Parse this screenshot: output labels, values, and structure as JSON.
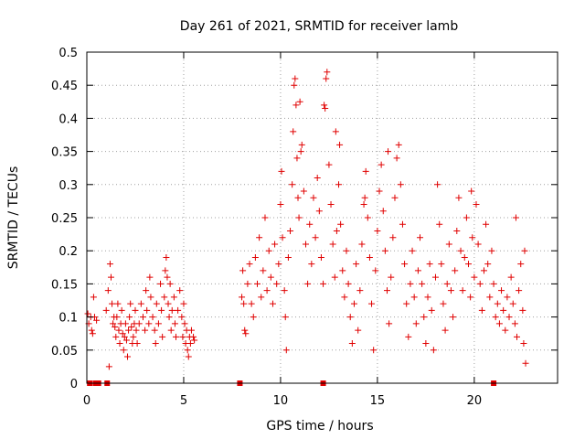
{
  "chart_data": {
    "type": "scatter",
    "title": "Day 261 of 2021, SRMTID for receiver lamb",
    "xlabel": "GPS time / hours",
    "ylabel": "SRMTID / TECUs",
    "xlim": [
      0,
      24.3
    ],
    "ylim": [
      0,
      0.5
    ],
    "x_ticks": [
      0,
      5,
      10,
      15,
      20
    ],
    "x_tick_labels": [
      "0",
      "5",
      "10",
      "15",
      "20"
    ],
    "y_ticks": [
      0,
      0.05,
      0.1,
      0.15,
      0.2,
      0.25,
      0.3,
      0.35,
      0.4,
      0.45,
      0.5
    ],
    "y_tick_labels": [
      "0",
      "0.05",
      "0.1",
      "0.15",
      "0.2",
      "0.25",
      "0.3",
      "0.35",
      "0.4",
      "0.45",
      "0.5"
    ],
    "grid": true,
    "marker": "+",
    "color": "#e00000",
    "zero_markers": {
      "x": [
        0.15,
        0.45,
        0.6,
        1.05,
        7.9,
        12.2,
        21.0
      ],
      "y": 0,
      "marker": "square"
    },
    "series": [
      {
        "name": "SRMTID",
        "points": [
          [
            0.05,
            0.105
          ],
          [
            0.1,
            0.09
          ],
          [
            0.2,
            0.1
          ],
          [
            0.25,
            0.08
          ],
          [
            0.3,
            0.075
          ],
          [
            0.35,
            0.13
          ],
          [
            0.4,
            0.1
          ],
          [
            0.5,
            0.095
          ],
          [
            1.0,
            0.11
          ],
          [
            1.1,
            0.14
          ],
          [
            1.2,
            0.18
          ],
          [
            1.25,
            0.16
          ],
          [
            1.3,
            0.12
          ],
          [
            1.35,
            0.09
          ],
          [
            1.4,
            0.1
          ],
          [
            1.45,
            0.085
          ],
          [
            1.5,
            0.07
          ],
          [
            1.55,
            0.1
          ],
          [
            1.6,
            0.12
          ],
          [
            1.65,
            0.08
          ],
          [
            1.7,
            0.06
          ],
          [
            1.75,
            0.09
          ],
          [
            1.8,
            0.11
          ],
          [
            1.85,
            0.075
          ],
          [
            1.9,
            0.05
          ],
          [
            1.95,
            0.07
          ],
          [
            2.0,
            0.09
          ],
          [
            2.05,
            0.065
          ],
          [
            2.1,
            0.04
          ],
          [
            2.15,
            0.08
          ],
          [
            2.2,
            0.1
          ],
          [
            2.25,
            0.12
          ],
          [
            2.3,
            0.085
          ],
          [
            2.35,
            0.06
          ],
          [
            2.4,
            0.07
          ],
          [
            2.45,
            0.09
          ],
          [
            2.5,
            0.11
          ],
          [
            2.55,
            0.08
          ],
          [
            2.6,
            0.06
          ],
          [
            2.7,
            0.09
          ],
          [
            2.8,
            0.12
          ],
          [
            2.9,
            0.1
          ],
          [
            3.0,
            0.08
          ],
          [
            3.05,
            0.14
          ],
          [
            3.1,
            0.11
          ],
          [
            3.2,
            0.09
          ],
          [
            3.25,
            0.16
          ],
          [
            3.3,
            0.13
          ],
          [
            3.4,
            0.1
          ],
          [
            3.5,
            0.08
          ],
          [
            3.55,
            0.06
          ],
          [
            3.6,
            0.12
          ],
          [
            3.7,
            0.09
          ],
          [
            3.8,
            0.15
          ],
          [
            3.85,
            0.11
          ],
          [
            3.9,
            0.07
          ],
          [
            4.0,
            0.13
          ],
          [
            4.05,
            0.17
          ],
          [
            4.1,
            0.19
          ],
          [
            4.15,
            0.16
          ],
          [
            4.2,
            0.12
          ],
          [
            4.25,
            0.1
          ],
          [
            4.3,
            0.15
          ],
          [
            4.35,
            0.08
          ],
          [
            4.4,
            0.11
          ],
          [
            4.5,
            0.13
          ],
          [
            4.55,
            0.09
          ],
          [
            4.6,
            0.07
          ],
          [
            4.7,
            0.11
          ],
          [
            4.8,
            0.14
          ],
          [
            4.9,
            0.1
          ],
          [
            4.95,
            0.07
          ],
          [
            5.0,
            0.12
          ],
          [
            5.05,
            0.09
          ],
          [
            5.1,
            0.06
          ],
          [
            5.15,
            0.08
          ],
          [
            5.2,
            0.05
          ],
          [
            5.25,
            0.04
          ],
          [
            5.3,
            0.07
          ],
          [
            5.35,
            0.06
          ],
          [
            5.4,
            0.08
          ],
          [
            5.5,
            0.07
          ],
          [
            5.55,
            0.065
          ],
          [
            1.15,
            0.025
          ],
          [
            8.0,
            0.13
          ],
          [
            8.05,
            0.17
          ],
          [
            8.1,
            0.12
          ],
          [
            8.15,
            0.08
          ],
          [
            8.2,
            0.075
          ],
          [
            8.3,
            0.15
          ],
          [
            8.4,
            0.18
          ],
          [
            8.5,
            0.12
          ],
          [
            8.6,
            0.1
          ],
          [
            8.7,
            0.19
          ],
          [
            8.8,
            0.15
          ],
          [
            8.9,
            0.22
          ],
          [
            9.0,
            0.13
          ],
          [
            9.1,
            0.17
          ],
          [
            9.2,
            0.25
          ],
          [
            9.3,
            0.14
          ],
          [
            9.4,
            0.2
          ],
          [
            9.5,
            0.16
          ],
          [
            9.6,
            0.12
          ],
          [
            9.7,
            0.21
          ],
          [
            9.8,
            0.15
          ],
          [
            9.9,
            0.18
          ],
          [
            10.0,
            0.27
          ],
          [
            10.05,
            0.32
          ],
          [
            10.1,
            0.22
          ],
          [
            10.2,
            0.14
          ],
          [
            10.25,
            0.1
          ],
          [
            10.3,
            0.05
          ],
          [
            10.4,
            0.19
          ],
          [
            10.5,
            0.23
          ],
          [
            10.6,
            0.3
          ],
          [
            10.65,
            0.38
          ],
          [
            10.7,
            0.45
          ],
          [
            10.75,
            0.46
          ],
          [
            10.8,
            0.42
          ],
          [
            10.85,
            0.34
          ],
          [
            10.9,
            0.28
          ],
          [
            10.95,
            0.25
          ],
          [
            11.0,
            0.425
          ],
          [
            11.05,
            0.35
          ],
          [
            11.1,
            0.36
          ],
          [
            11.2,
            0.29
          ],
          [
            11.3,
            0.21
          ],
          [
            11.4,
            0.15
          ],
          [
            11.5,
            0.24
          ],
          [
            11.6,
            0.18
          ],
          [
            11.7,
            0.28
          ],
          [
            11.8,
            0.22
          ],
          [
            11.9,
            0.31
          ],
          [
            12.0,
            0.26
          ],
          [
            12.1,
            0.19
          ],
          [
            12.2,
            0.15
          ],
          [
            12.25,
            0.42
          ],
          [
            12.3,
            0.415
          ],
          [
            12.35,
            0.46
          ],
          [
            12.4,
            0.47
          ],
          [
            12.5,
            0.33
          ],
          [
            12.6,
            0.27
          ],
          [
            12.7,
            0.21
          ],
          [
            12.8,
            0.16
          ],
          [
            12.9,
            0.23
          ],
          [
            13.0,
            0.3
          ],
          [
            13.1,
            0.24
          ],
          [
            13.2,
            0.17
          ],
          [
            13.3,
            0.13
          ],
          [
            13.4,
            0.2
          ],
          [
            13.5,
            0.15
          ],
          [
            13.6,
            0.1
          ],
          [
            13.7,
            0.06
          ],
          [
            13.8,
            0.12
          ],
          [
            13.9,
            0.18
          ],
          [
            14.0,
            0.08
          ],
          [
            14.1,
            0.14
          ],
          [
            14.2,
            0.21
          ],
          [
            14.3,
            0.27
          ],
          [
            14.4,
            0.32
          ],
          [
            14.5,
            0.25
          ],
          [
            14.6,
            0.19
          ],
          [
            14.7,
            0.12
          ],
          [
            14.8,
            0.05
          ],
          [
            14.9,
            0.17
          ],
          [
            15.0,
            0.23
          ],
          [
            15.1,
            0.29
          ],
          [
            15.2,
            0.33
          ],
          [
            15.3,
            0.26
          ],
          [
            15.4,
            0.2
          ],
          [
            15.5,
            0.14
          ],
          [
            15.6,
            0.09
          ],
          [
            15.7,
            0.16
          ],
          [
            15.8,
            0.22
          ],
          [
            15.9,
            0.28
          ],
          [
            16.0,
            0.34
          ],
          [
            16.1,
            0.36
          ],
          [
            16.2,
            0.3
          ],
          [
            16.3,
            0.24
          ],
          [
            16.4,
            0.18
          ],
          [
            16.5,
            0.12
          ],
          [
            16.6,
            0.07
          ],
          [
            16.7,
            0.15
          ],
          [
            16.8,
            0.2
          ],
          [
            16.9,
            0.13
          ],
          [
            17.0,
            0.09
          ],
          [
            17.1,
            0.17
          ],
          [
            17.2,
            0.22
          ],
          [
            17.3,
            0.15
          ],
          [
            17.4,
            0.1
          ],
          [
            17.5,
            0.06
          ],
          [
            17.6,
            0.13
          ],
          [
            17.7,
            0.18
          ],
          [
            17.8,
            0.11
          ],
          [
            17.9,
            0.05
          ],
          [
            18.0,
            0.16
          ],
          [
            18.1,
            0.3
          ],
          [
            18.2,
            0.24
          ],
          [
            18.3,
            0.18
          ],
          [
            18.4,
            0.12
          ],
          [
            18.5,
            0.08
          ],
          [
            18.6,
            0.15
          ],
          [
            18.7,
            0.21
          ],
          [
            18.8,
            0.14
          ],
          [
            18.9,
            0.1
          ],
          [
            19.0,
            0.17
          ],
          [
            19.1,
            0.23
          ],
          [
            19.2,
            0.28
          ],
          [
            19.3,
            0.2
          ],
          [
            19.4,
            0.14
          ],
          [
            19.5,
            0.19
          ],
          [
            19.6,
            0.25
          ],
          [
            19.7,
            0.18
          ],
          [
            19.8,
            0.13
          ],
          [
            19.9,
            0.22
          ],
          [
            20.0,
            0.16
          ],
          [
            20.1,
            0.27
          ],
          [
            20.2,
            0.21
          ],
          [
            20.3,
            0.15
          ],
          [
            20.4,
            0.11
          ],
          [
            20.5,
            0.17
          ],
          [
            20.6,
            0.24
          ],
          [
            20.7,
            0.18
          ],
          [
            20.8,
            0.13
          ],
          [
            20.9,
            0.2
          ],
          [
            21.0,
            0.15
          ],
          [
            21.1,
            0.1
          ],
          [
            21.2,
            0.12
          ],
          [
            21.3,
            0.09
          ],
          [
            21.4,
            0.14
          ],
          [
            21.5,
            0.11
          ],
          [
            21.6,
            0.08
          ],
          [
            21.7,
            0.13
          ],
          [
            21.8,
            0.1
          ],
          [
            21.9,
            0.16
          ],
          [
            22.0,
            0.12
          ],
          [
            22.1,
            0.09
          ],
          [
            22.2,
            0.07
          ],
          [
            22.3,
            0.14
          ],
          [
            22.4,
            0.18
          ],
          [
            22.5,
            0.11
          ],
          [
            22.55,
            0.06
          ],
          [
            22.6,
            0.2
          ],
          [
            22.65,
            0.03
          ],
          [
            14.35,
            0.28
          ],
          [
            13.05,
            0.36
          ],
          [
            12.85,
            0.38
          ],
          [
            15.55,
            0.35
          ],
          [
            19.85,
            0.29
          ],
          [
            22.15,
            0.25
          ]
        ]
      }
    ]
  }
}
